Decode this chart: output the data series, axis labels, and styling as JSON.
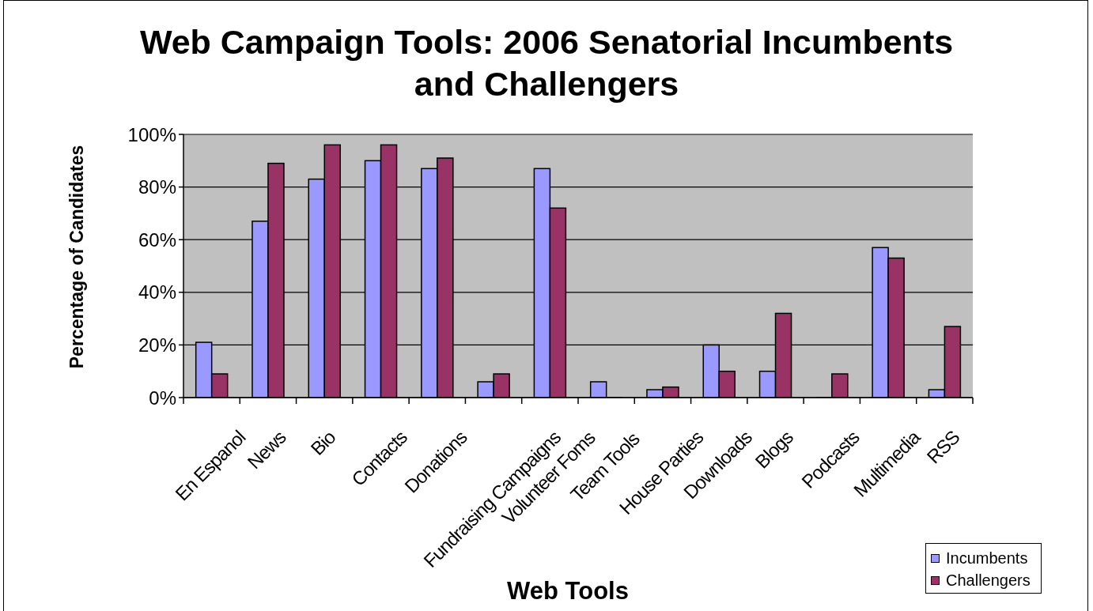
{
  "chart_data": {
    "type": "bar",
    "title": "Web Campaign Tools: 2006 Senatorial Incumbents and Challengers",
    "xlabel": "Web Tools",
    "ylabel": "Percentage of Candidates",
    "categories": [
      "En Espanol",
      "News",
      "Bio",
      "Contacts",
      "Donations",
      "Fundraising Campaigns",
      "Volunteer Foms",
      "Team Tools",
      "House Parties",
      "Downloads",
      "Blogs",
      "Podcasts",
      "Multimedia",
      "RSS"
    ],
    "series": [
      {
        "name": "Incumbents",
        "color": "#9999ff",
        "values": [
          21,
          67,
          83,
          90,
          87,
          6,
          87,
          6,
          3,
          20,
          10,
          0,
          57,
          3
        ]
      },
      {
        "name": "Challengers",
        "color": "#993366",
        "values": [
          9,
          89,
          96,
          96,
          91,
          9,
          72,
          0,
          4,
          10,
          32,
          9,
          53,
          27
        ]
      }
    ],
    "ylim": [
      0,
      100
    ],
    "yticks": [
      {
        "value": 0,
        "label": "0%"
      },
      {
        "value": 20,
        "label": "20%"
      },
      {
        "value": 40,
        "label": "40%"
      },
      {
        "value": 60,
        "label": "60%"
      },
      {
        "value": 80,
        "label": "80%"
      },
      {
        "value": 100,
        "label": "100%"
      }
    ],
    "grid": "y",
    "legend": "bottom right"
  }
}
